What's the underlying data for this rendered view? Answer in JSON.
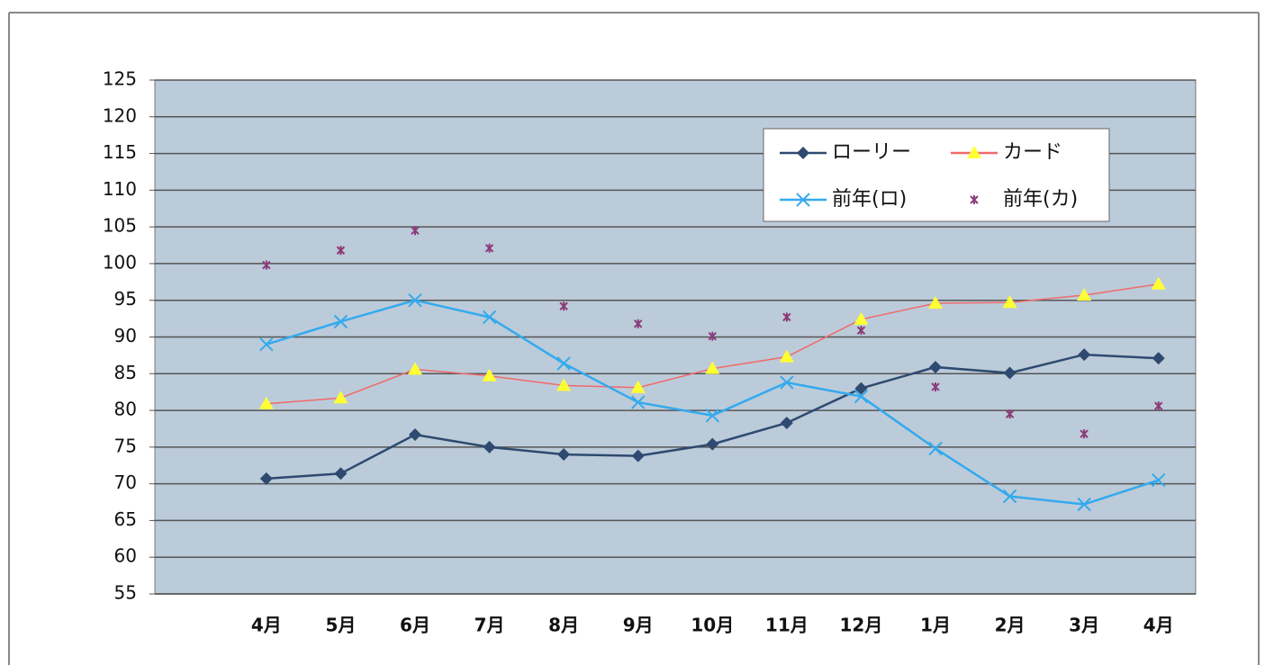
{
  "chart_data": {
    "type": "line",
    "categories": [
      null,
      "4月",
      "5月",
      "6月",
      "7月",
      "8月",
      "9月",
      "10月",
      "11月",
      "12月",
      "1月",
      "2月",
      "3月",
      "4月"
    ],
    "series": [
      {
        "name": "ローリー",
        "color": "#2e4a70",
        "marker": "diamond",
        "line": true,
        "values": [
          null,
          70.7,
          71.4,
          76.7,
          75.0,
          74.0,
          73.8,
          75.4,
          78.3,
          83.0,
          85.9,
          85.1,
          87.6,
          87.1
        ]
      },
      {
        "name": "カード",
        "color": "#f06a6a",
        "marker_color": "#ffff33",
        "marker": "triangle",
        "line": true,
        "values": [
          null,
          80.9,
          81.7,
          85.6,
          84.7,
          83.4,
          83.1,
          85.7,
          87.3,
          92.4,
          94.6,
          94.7,
          95.7,
          97.2
        ]
      },
      {
        "name": "前年(ロ)",
        "color": "#33aaee",
        "marker": "x",
        "line": true,
        "values": [
          null,
          89.0,
          92.1,
          95.0,
          92.7,
          86.4,
          81.1,
          79.3,
          83.8,
          81.9,
          74.8,
          68.3,
          67.2,
          70.5
        ]
      },
      {
        "name": "前年(カ)",
        "color": "#8a3a7a",
        "marker": "star",
        "line": false,
        "values": [
          null,
          99.8,
          101.8,
          104.5,
          102.1,
          94.2,
          91.8,
          90.1,
          92.7,
          90.9,
          83.2,
          79.5,
          76.8,
          80.6
        ]
      }
    ],
    "ylim": [
      55,
      125
    ],
    "yticks": [
      55,
      60,
      65,
      70,
      75,
      80,
      85,
      90,
      95,
      100,
      105,
      110,
      115,
      120,
      125
    ],
    "grid": true,
    "legend": "upper right",
    "plot_color": "#bccbd9"
  }
}
